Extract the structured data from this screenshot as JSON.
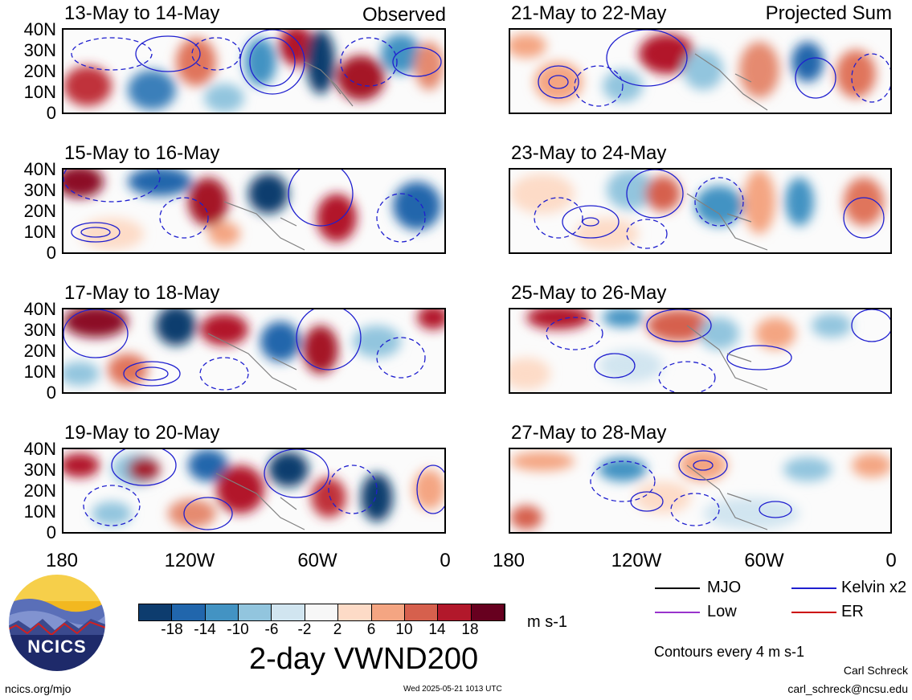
{
  "left_column": {
    "tag": "Observed",
    "panels": [
      {
        "title": "13-May to 14-May"
      },
      {
        "title": "15-May to 16-May"
      },
      {
        "title": "17-May to 18-May"
      },
      {
        "title": "19-May to 20-May"
      }
    ]
  },
  "right_column": {
    "tag": "Projected Sum",
    "panels": [
      {
        "title": "21-May to 22-May"
      },
      {
        "title": "23-May to 24-May"
      },
      {
        "title": "25-May to 26-May"
      },
      {
        "title": "27-May to 28-May"
      }
    ]
  },
  "lat_labels": [
    "40N",
    "30N",
    "20N",
    "10N",
    "0"
  ],
  "lon_labels": [
    "180",
    "120W",
    "60W",
    "0"
  ],
  "colorbar": {
    "labels": [
      "-18",
      "-14",
      "-10",
      "-6",
      "-2",
      "2",
      "6",
      "10",
      "14",
      "18"
    ],
    "colors": [
      "#0d3c6e",
      "#2166ac",
      "#4393c3",
      "#92c5de",
      "#d1e5f0",
      "#f7f7f7",
      "#fddbc7",
      "#f4a582",
      "#d6604d",
      "#b2182b",
      "#67001f"
    ],
    "units": "m s-1"
  },
  "legend": {
    "mjo": {
      "label": "MJO",
      "color": "#000000"
    },
    "kelvin": {
      "label": "Kelvin x2",
      "color": "#1f1fcf"
    },
    "low": {
      "label": "Low",
      "color": "#9933cc"
    },
    "er": {
      "label": "ER",
      "color": "#cc0000"
    }
  },
  "contours_note": "Contours every 4 m s-1",
  "main_title": "2-day VWND200",
  "logo_text": "NCICS",
  "footer": {
    "url": "ncics.org/mjo",
    "timestamp": "Wed 2025-05-21 1013 UTC",
    "author": "Carl Schreck",
    "email": "carl_schreck@ncsu.edu"
  }
}
